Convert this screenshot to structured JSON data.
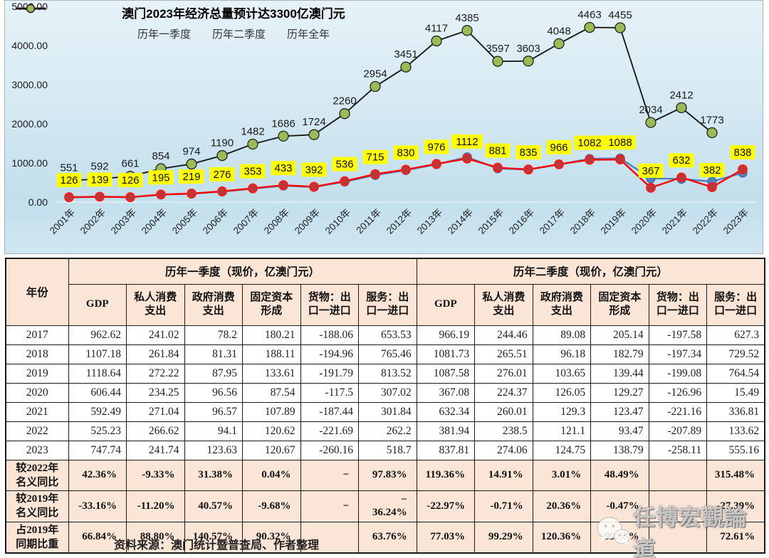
{
  "chart_data": {
    "type": "line",
    "title": "澳门2023年经济总量预计达3300亿澳门元",
    "unit_hint": "亿澳门元",
    "categories": [
      "2001年",
      "2002年",
      "2003年",
      "2004年",
      "2005年",
      "2006年",
      "2007年",
      "2008年",
      "2009年",
      "2010年",
      "2011年",
      "2012年",
      "2013年",
      "2014年",
      "2015年",
      "2016年",
      "2017年",
      "2018年",
      "2019年",
      "2020年",
      "2021年",
      "2022年",
      "2023年"
    ],
    "ylim": [
      0,
      5000
    ],
    "y_tick_values": [
      5000,
      4000,
      3000,
      2000,
      1000,
      0
    ],
    "y_tick_labels": [
      "5000.00",
      "4000.00",
      "3000.00",
      "2000.00",
      "1000.00",
      "0.00"
    ],
    "grid": "zero-line-only",
    "legend_position": "top",
    "series": [
      {
        "name": "历年一季度",
        "line_color": "#4f81bd",
        "marker_fill": "#4f81bd",
        "marker_stroke": "#3a689c",
        "labels_visible": false,
        "values": [
          120,
          135,
          125,
          190,
          215,
          268,
          345,
          420,
          385,
          520,
          690,
          815,
          965,
          1150,
          860,
          828,
          963,
          1107,
          1119,
          606,
          592,
          525,
          748
        ]
      },
      {
        "name": "历年二季度",
        "line_color": "#ff0000",
        "marker_fill": "#b93838",
        "marker_stroke": "#ff1a1a",
        "labels_visible": true,
        "label_bg": "#ffff00",
        "values": [
          126,
          139,
          126,
          195,
          219,
          276,
          353,
          433,
          392,
          536,
          715,
          830,
          976,
          1112,
          881,
          835,
          966,
          1082,
          1088,
          367,
          632,
          382,
          838
        ]
      },
      {
        "name": "历年全年",
        "line_color": "#1b1b1b",
        "marker_fill": "#9bbb59",
        "marker_stroke": "#222222",
        "labels_visible": true,
        "values": [
          551,
          592,
          661,
          854,
          974,
          1190,
          1482,
          1686,
          1724,
          2260,
          2954,
          3451,
          4117,
          4385,
          3597,
          3603,
          4048,
          4463,
          4455,
          2034,
          2412,
          1773,
          null
        ]
      }
    ]
  },
  "table": {
    "year_header": "年份",
    "col_groups": [
      "历年一季度（现价，亿澳门元）",
      "历年二季度（现价，亿澳门元）"
    ],
    "sub_headers": [
      "GDP",
      "私人消费支出",
      "政府消费支出",
      "固定资本形成",
      "货物：出口一进口",
      "服务：出口一进口"
    ],
    "rows": [
      {
        "year": "2017",
        "q1": [
          "962.62",
          "241.02",
          "78.2",
          "180.21",
          "-188.06",
          "653.53"
        ],
        "q2": [
          "966.19",
          "244.46",
          "89.08",
          "205.14",
          "-197.58",
          "627.3"
        ]
      },
      {
        "year": "2018",
        "q1": [
          "1107.18",
          "261.84",
          "81.31",
          "188.11",
          "-194.96",
          "765.46"
        ],
        "q2": [
          "1081.73",
          "265.51",
          "96.18",
          "182.79",
          "-197.34",
          "729.52"
        ]
      },
      {
        "year": "2019",
        "q1": [
          "1118.64",
          "272.22",
          "87.95",
          "133.61",
          "-191.79",
          "813.52"
        ],
        "q2": [
          "1087.58",
          "276.01",
          "103.65",
          "139.44",
          "-199.08",
          "764.54"
        ]
      },
      {
        "year": "2020",
        "q1": [
          "606.44",
          "234.25",
          "96.56",
          "87.54",
          "-117.5",
          "307.02"
        ],
        "q2": [
          "367.08",
          "224.37",
          "126.05",
          "129.27",
          "-126.96",
          "15.49"
        ]
      },
      {
        "year": "2021",
        "q1": [
          "592.49",
          "271.04",
          "96.57",
          "107.89",
          "-187.44",
          "301.84"
        ],
        "q2": [
          "632.34",
          "260.01",
          "129.3",
          "123.47",
          "-221.16",
          "336.81"
        ]
      },
      {
        "year": "2022",
        "q1": [
          "525.23",
          "266.62",
          "94.1",
          "120.62",
          "-221.69",
          "262.2"
        ],
        "q2": [
          "381.94",
          "238.5",
          "121.1",
          "93.47",
          "-207.89",
          "133.62"
        ]
      },
      {
        "year": "2023",
        "q1": [
          "747.74",
          "241.74",
          "123.63",
          "120.67",
          "-260.16",
          "518.7"
        ],
        "q2": [
          "837.81",
          "274.06",
          "124.75",
          "138.79",
          "-258.11",
          "555.16"
        ]
      }
    ],
    "summary_rows": [
      {
        "label_lines": [
          "较2022年",
          "名义同比"
        ],
        "q1": [
          "42.36%",
          "-9.33%",
          "31.38%",
          "0.04%",
          "−",
          "97.83%"
        ],
        "q2": [
          "119.36%",
          "14.91%",
          "3.01%",
          "48.49%",
          "",
          "315.48%"
        ]
      },
      {
        "label_lines": [
          "较2019年",
          "名义同比"
        ],
        "q1": [
          "-33.16%",
          "-11.20%",
          "40.57%",
          "-9.68%",
          "−",
          "−\n36.24%"
        ],
        "q2": [
          "-22.97%",
          "-0.71%",
          "20.36%",
          "-0.47%",
          "",
          "-27.39%"
        ]
      },
      {
        "label_lines": [
          "占2019年",
          "同期比重"
        ],
        "q1": [
          "66.84%",
          "88.80%",
          "140.57%",
          "90.32%",
          "",
          "63.76%"
        ],
        "q2": [
          "77.03%",
          "99.29%",
          "120.36%",
          "99.53%",
          "",
          "72.61%"
        ]
      }
    ]
  },
  "watermark": {
    "text": "任博宏觀論道"
  },
  "source": {
    "note": "资料来源：澳门统计暨普查局、作者整理"
  }
}
